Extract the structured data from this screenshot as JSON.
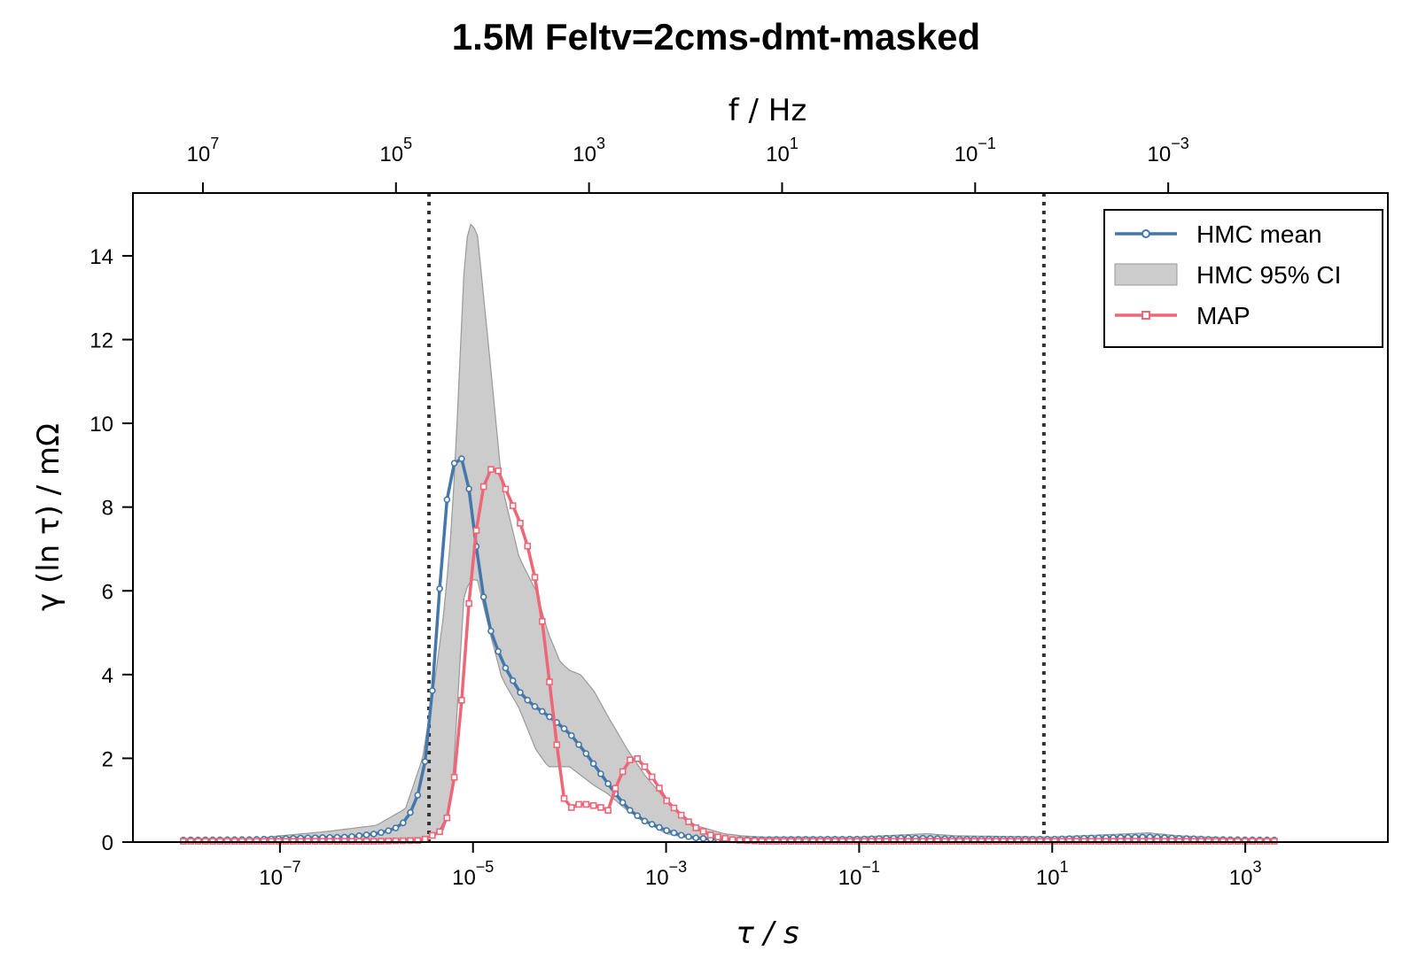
{
  "chart_data": {
    "type": "line",
    "title": "1.5M Feltv=2cms-dmt-masked",
    "xlabel": "τ / s",
    "ylabel": "γ (ln τ) / mΩ",
    "top_xlabel": "f / Hz",
    "x_scale": "log",
    "xlim": [
      3e-09,
      30000.0
    ],
    "ylim": [
      0,
      15.5
    ],
    "x_ticks": [
      {
        "value": 1e-07,
        "base": "10",
        "exp": "−7"
      },
      {
        "value": 1e-05,
        "base": "10",
        "exp": "−5"
      },
      {
        "value": 0.001,
        "base": "10",
        "exp": "−3"
      },
      {
        "value": 0.1,
        "base": "10",
        "exp": "−1"
      },
      {
        "value": 10,
        "base": "10",
        "exp": "1"
      },
      {
        "value": 1000,
        "base": "10",
        "exp": "3"
      }
    ],
    "top_x_ticks": [
      {
        "freq": 10000000.0,
        "base": "10",
        "exp": "7"
      },
      {
        "freq": 100000.0,
        "base": "10",
        "exp": "5"
      },
      {
        "freq": 1000.0,
        "base": "10",
        "exp": "3"
      },
      {
        "freq": 10,
        "base": "10",
        "exp": "1"
      },
      {
        "freq": 0.1,
        "base": "10",
        "exp": "−1"
      },
      {
        "freq": 0.001,
        "base": "10",
        "exp": "−3"
      }
    ],
    "y_ticks": [
      0,
      2,
      4,
      6,
      8,
      10,
      12,
      14
    ],
    "vlines_x": [
      3.5e-06,
      8.2
    ],
    "grid": false,
    "legend_position": "upper right",
    "legend": [
      {
        "label": "HMC mean",
        "kind": "line-circle",
        "color": "#4477AA"
      },
      {
        "label": "HMC 95% CI",
        "kind": "band",
        "color": "#BBBBBB"
      },
      {
        "label": "MAP",
        "kind": "line-square",
        "color": "#EE6677"
      }
    ],
    "ci_upper": {
      "x": [
        1e-08,
        5e-08,
        1e-07,
        3e-07,
        1e-06,
        2e-06,
        3e-06,
        4e-06,
        5e-06,
        6e-06,
        7e-06,
        8e-06,
        9e-06,
        1.1e-05,
        1.5e-05,
        2e-05,
        3e-05,
        4.5e-05,
        6e-05,
        8e-05,
        0.0001,
        0.00013,
        0.00018,
        0.00025,
        0.0004,
        0.0006,
        0.001,
        0.002,
        0.004,
        0.006,
        0.01,
        0.1,
        0.5,
        1,
        10,
        100,
        200,
        1000,
        2000
      ],
      "y": [
        0.05,
        0.06,
        0.15,
        0.25,
        0.4,
        0.8,
        2.0,
        3.8,
        5.5,
        7.5,
        10.5,
        13.5,
        14.8,
        14.6,
        11.5,
        8.5,
        6.8,
        6.0,
        5.0,
        4.3,
        4.1,
        4.0,
        3.6,
        3.0,
        2.2,
        1.6,
        1.0,
        0.4,
        0.2,
        0.15,
        0.12,
        0.12,
        0.2,
        0.15,
        0.12,
        0.22,
        0.15,
        0.08,
        0.05
      ]
    },
    "ci_lower": {
      "x": [
        1e-08,
        5e-08,
        1e-07,
        3e-07,
        1e-06,
        2e-06,
        3e-06,
        4e-06,
        5e-06,
        6e-06,
        7e-06,
        8e-06,
        9e-06,
        1.1e-05,
        1.5e-05,
        2e-05,
        3e-05,
        4.5e-05,
        6e-05,
        8e-05,
        0.0001,
        0.00013,
        0.00018,
        0.00025,
        0.0004,
        0.0006,
        0.001,
        0.002,
        0.004,
        0.006,
        0.01,
        0.1,
        0.5,
        1,
        10,
        100,
        200,
        1000,
        2000
      ],
      "y": [
        0.05,
        0.05,
        0.05,
        0.05,
        0.05,
        0.08,
        0.1,
        0.15,
        0.3,
        1.0,
        3.5,
        5.8,
        6.2,
        6.3,
        5.0,
        3.9,
        3.2,
        2.2,
        1.8,
        1.8,
        1.8,
        1.6,
        1.35,
        1.15,
        0.75,
        0.5,
        0.2,
        0.07,
        0.05,
        0.05,
        0.05,
        0.05,
        0.05,
        0.05,
        0.05,
        0.05,
        0.05,
        0.05,
        0.05
      ]
    },
    "hmc_mean": {
      "x": [
        1e-08,
        5e-08,
        1e-07,
        2e-07,
        5e-07,
        1e-06,
        1.5e-06,
        2e-06,
        2.5e-06,
        3e-06,
        3.5e-06,
        4e-06,
        4.5e-06,
        5e-06,
        6e-06,
        7e-06,
        8e-06,
        9e-06,
        1e-05,
        1.2e-05,
        1.5e-05,
        2e-05,
        3e-05,
        4e-05,
        5e-05,
        7e-05,
        0.0001,
        0.00015,
        0.0002,
        0.0003,
        0.0004,
        0.0006,
        0.001,
        0.0015,
        0.002,
        0.003,
        0.004,
        0.006,
        0.01,
        0.1,
        0.3,
        0.5,
        1,
        10,
        30,
        100,
        200,
        500,
        2000
      ],
      "y": [
        0.05,
        0.06,
        0.08,
        0.1,
        0.12,
        0.2,
        0.3,
        0.5,
        0.9,
        1.5,
        2.6,
        4.3,
        6.0,
        7.7,
        8.9,
        9.25,
        9.1,
        8.5,
        7.7,
        6.2,
        5.1,
        4.3,
        3.6,
        3.3,
        3.15,
        2.9,
        2.6,
        2.1,
        1.7,
        1.15,
        0.8,
        0.5,
        0.28,
        0.15,
        0.1,
        0.07,
        0.06,
        0.06,
        0.06,
        0.07,
        0.1,
        0.09,
        0.07,
        0.07,
        0.1,
        0.12,
        0.09,
        0.06,
        0.05
      ]
    },
    "map": {
      "x": [
        1e-08,
        5e-08,
        1e-07,
        5e-07,
        1e-06,
        3e-06,
        5e-06,
        6e-06,
        7e-06,
        8e-06,
        9e-06,
        1e-05,
        1.2e-05,
        1.5e-05,
        1.8e-05,
        2.2e-05,
        3e-05,
        4e-05,
        5e-05,
        6e-05,
        7e-05,
        8e-05,
        9e-05,
        0.0001,
        0.00012,
        0.00015,
        0.0002,
        0.00025,
        0.0003,
        0.0004,
        0.0005,
        0.0006,
        0.0008,
        0.001,
        0.0015,
        0.002,
        0.003,
        0.005,
        0.01,
        0.1,
        1,
        10,
        100,
        2000
      ],
      "y": [
        0.02,
        0.02,
        0.02,
        0.02,
        0.02,
        0.04,
        0.3,
        1.0,
        2.3,
        4.0,
        5.6,
        6.8,
        8.3,
        8.9,
        8.9,
        8.4,
        7.7,
        6.8,
        5.6,
        4.1,
        2.8,
        1.6,
        0.9,
        0.8,
        0.9,
        0.9,
        0.85,
        0.75,
        1.3,
        1.95,
        2.0,
        1.8,
        1.4,
        1.0,
        0.6,
        0.35,
        0.15,
        0.05,
        0.02,
        0.02,
        0.02,
        0.02,
        0.02,
        0.02
      ]
    }
  }
}
